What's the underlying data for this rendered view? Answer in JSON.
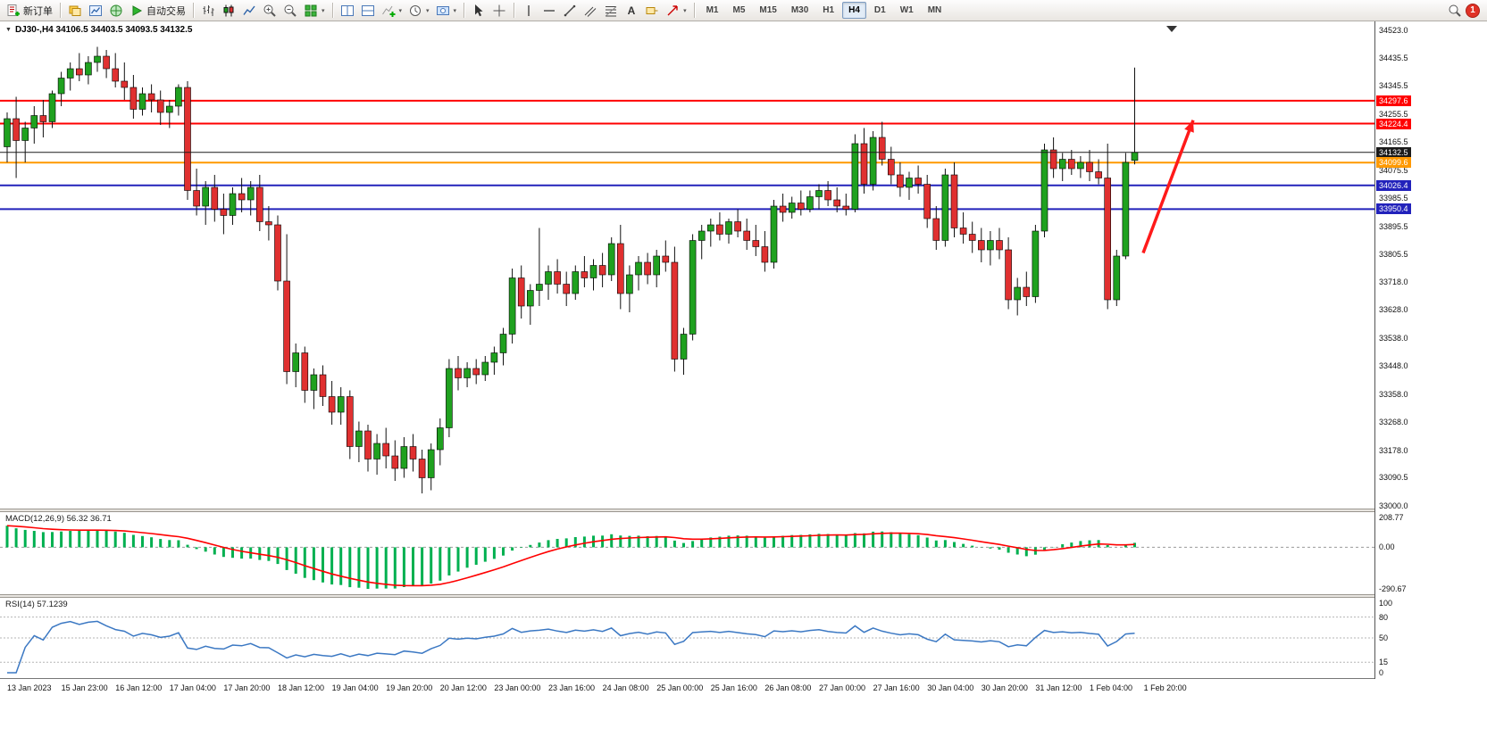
{
  "window": {
    "badge_count": "1"
  },
  "toolbar": {
    "new_order_label": "新订单",
    "auto_trading_label": "自动交易",
    "timeframes": [
      "M1",
      "M5",
      "M15",
      "M30",
      "H1",
      "H4",
      "D1",
      "W1",
      "MN"
    ],
    "active_timeframe": "H4"
  },
  "chart_header": {
    "symbol_title": "DJ30-,H4 34106.5 34403.5 34093.5 34132.5"
  },
  "chart_data": {
    "type": "candlestick",
    "symbol": "DJ30-",
    "period": "H4",
    "current": {
      "open": 34106.5,
      "high": 34403.5,
      "low": 34093.5,
      "close": 34132.5
    },
    "y_range": [
      33000,
      34523
    ],
    "y_ticks": [
      "34523.0",
      "34435.5",
      "34345.5",
      "34255.5",
      "34165.5",
      "34075.5",
      "33985.5",
      "33895.5",
      "33805.5",
      "33718.0",
      "33628.0",
      "33538.0",
      "33448.0",
      "33358.0",
      "33268.0",
      "33178.0",
      "33090.5",
      "33000.0"
    ],
    "price_lines": [
      {
        "value": 34297.6,
        "color": "#ff0000",
        "width": 2
      },
      {
        "value": 34224.4,
        "color": "#ff0000",
        "width": 2
      },
      {
        "value": 34132.5,
        "color": "#1a1a1a",
        "width": 1,
        "type": "bid"
      },
      {
        "value": 34099.6,
        "color": "#ff9900",
        "width": 2
      },
      {
        "value": 34026.4,
        "color": "#2222bb",
        "width": 2
      },
      {
        "value": 33950.4,
        "color": "#2222bb",
        "width": 2
      }
    ],
    "colors": {
      "up": "#1fa11f",
      "down": "#e03030",
      "wick": "#111111"
    },
    "candles": [
      [
        34150,
        34260,
        34100,
        34240
      ],
      [
        34240,
        34310,
        34050,
        34170
      ],
      [
        34170,
        34230,
        34100,
        34210
      ],
      [
        34210,
        34280,
        34160,
        34250
      ],
      [
        34250,
        34300,
        34180,
        34230
      ],
      [
        34230,
        34330,
        34210,
        34320
      ],
      [
        34320,
        34390,
        34280,
        34370
      ],
      [
        34370,
        34420,
        34330,
        34400
      ],
      [
        34400,
        34450,
        34360,
        34380
      ],
      [
        34380,
        34440,
        34350,
        34420
      ],
      [
        34420,
        34470,
        34390,
        34440
      ],
      [
        34440,
        34460,
        34370,
        34400
      ],
      [
        34400,
        34450,
        34340,
        34360
      ],
      [
        34360,
        34420,
        34300,
        34340
      ],
      [
        34340,
        34380,
        34240,
        34270
      ],
      [
        34270,
        34340,
        34250,
        34320
      ],
      [
        34320,
        34350,
        34260,
        34300
      ],
      [
        34300,
        34330,
        34220,
        34260
      ],
      [
        34260,
        34300,
        34210,
        34280
      ],
      [
        34280,
        34350,
        34250,
        34340
      ],
      [
        34340,
        34360,
        33980,
        34010
      ],
      [
        34010,
        34080,
        33930,
        33960
      ],
      [
        33960,
        34040,
        33900,
        34020
      ],
      [
        34020,
        34060,
        33910,
        33950
      ],
      [
        33950,
        34000,
        33870,
        33930
      ],
      [
        33930,
        34020,
        33900,
        34000
      ],
      [
        34000,
        34050,
        33940,
        33980
      ],
      [
        33980,
        34040,
        33930,
        34020
      ],
      [
        34020,
        34060,
        33880,
        33910
      ],
      [
        33910,
        33960,
        33850,
        33900
      ],
      [
        33900,
        33930,
        33690,
        33720
      ],
      [
        33720,
        33870,
        33390,
        33430
      ],
      [
        33430,
        33520,
        33380,
        33490
      ],
      [
        33490,
        33510,
        33330,
        33370
      ],
      [
        33370,
        33440,
        33310,
        33420
      ],
      [
        33420,
        33450,
        33320,
        33350
      ],
      [
        33350,
        33400,
        33260,
        33300
      ],
      [
        33300,
        33380,
        33260,
        33350
      ],
      [
        33350,
        33370,
        33150,
        33190
      ],
      [
        33190,
        33270,
        33140,
        33240
      ],
      [
        33240,
        33260,
        33110,
        33150
      ],
      [
        33150,
        33230,
        33100,
        33200
      ],
      [
        33200,
        33250,
        33120,
        33160
      ],
      [
        33160,
        33210,
        33080,
        33120
      ],
      [
        33120,
        33220,
        33090,
        33190
      ],
      [
        33190,
        33230,
        33110,
        33150
      ],
      [
        33150,
        33180,
        33040,
        33090
      ],
      [
        33090,
        33200,
        33050,
        33180
      ],
      [
        33180,
        33280,
        33130,
        33250
      ],
      [
        33250,
        33470,
        33220,
        33440
      ],
      [
        33440,
        33480,
        33370,
        33410
      ],
      [
        33410,
        33460,
        33380,
        33440
      ],
      [
        33440,
        33470,
        33390,
        33420
      ],
      [
        33420,
        33480,
        33400,
        33460
      ],
      [
        33460,
        33510,
        33420,
        33490
      ],
      [
        33490,
        33570,
        33450,
        33550
      ],
      [
        33550,
        33760,
        33520,
        33730
      ],
      [
        33730,
        33770,
        33600,
        33640
      ],
      [
        33640,
        33710,
        33580,
        33690
      ],
      [
        33690,
        33890,
        33640,
        33710
      ],
      [
        33710,
        33770,
        33660,
        33750
      ],
      [
        33750,
        33790,
        33680,
        33710
      ],
      [
        33710,
        33750,
        33640,
        33680
      ],
      [
        33680,
        33770,
        33660,
        33750
      ],
      [
        33750,
        33800,
        33700,
        33730
      ],
      [
        33730,
        33790,
        33690,
        33770
      ],
      [
        33770,
        33810,
        33700,
        33740
      ],
      [
        33740,
        33860,
        33720,
        33840
      ],
      [
        33840,
        33900,
        33630,
        33680
      ],
      [
        33680,
        33770,
        33620,
        33740
      ],
      [
        33740,
        33800,
        33690,
        33780
      ],
      [
        33780,
        33810,
        33710,
        33740
      ],
      [
        33740,
        33820,
        33700,
        33800
      ],
      [
        33800,
        33850,
        33750,
        33780
      ],
      [
        33780,
        33830,
        33430,
        33470
      ],
      [
        33470,
        33570,
        33420,
        33550
      ],
      [
        33550,
        33870,
        33530,
        33850
      ],
      [
        33850,
        33900,
        33790,
        33880
      ],
      [
        33880,
        33920,
        33830,
        33900
      ],
      [
        33900,
        33940,
        33850,
        33870
      ],
      [
        33870,
        33920,
        33840,
        33910
      ],
      [
        33910,
        33950,
        33860,
        33880
      ],
      [
        33880,
        33920,
        33820,
        33850
      ],
      [
        33850,
        33900,
        33800,
        33830
      ],
      [
        33830,
        33880,
        33750,
        33780
      ],
      [
        33780,
        33980,
        33760,
        33960
      ],
      [
        33960,
        34000,
        33910,
        33940
      ],
      [
        33940,
        33990,
        33920,
        33970
      ],
      [
        33970,
        34010,
        33930,
        33950
      ],
      [
        33950,
        34010,
        33940,
        33990
      ],
      [
        33990,
        34030,
        33950,
        34010
      ],
      [
        34010,
        34040,
        33960,
        33980
      ],
      [
        33980,
        34020,
        33940,
        33960
      ],
      [
        33960,
        34000,
        33930,
        33950
      ],
      [
        33950,
        34190,
        33940,
        34160
      ],
      [
        34160,
        34210,
        34000,
        34030
      ],
      [
        34030,
        34200,
        34010,
        34180
      ],
      [
        34180,
        34230,
        34090,
        34110
      ],
      [
        34110,
        34150,
        34030,
        34060
      ],
      [
        34060,
        34100,
        33990,
        34020
      ],
      [
        34020,
        34070,
        33980,
        34050
      ],
      [
        34050,
        34090,
        34000,
        34030
      ],
      [
        34030,
        34060,
        33890,
        33920
      ],
      [
        33920,
        33960,
        33820,
        33850
      ],
      [
        33850,
        34080,
        33830,
        34060
      ],
      [
        34060,
        34100,
        33860,
        33890
      ],
      [
        33890,
        33940,
        33840,
        33870
      ],
      [
        33870,
        33910,
        33810,
        33850
      ],
      [
        33850,
        33890,
        33780,
        33820
      ],
      [
        33820,
        33880,
        33770,
        33850
      ],
      [
        33850,
        33890,
        33790,
        33820
      ],
      [
        33820,
        33860,
        33630,
        33660
      ],
      [
        33660,
        33730,
        33610,
        33700
      ],
      [
        33700,
        33750,
        33640,
        33670
      ],
      [
        33670,
        33900,
        33650,
        33880
      ],
      [
        33880,
        34160,
        33860,
        34140
      ],
      [
        34140,
        34180,
        34050,
        34080
      ],
      [
        34080,
        34130,
        34040,
        34110
      ],
      [
        34110,
        34140,
        34060,
        34080
      ],
      [
        34080,
        34120,
        34050,
        34100
      ],
      [
        34100,
        34140,
        34040,
        34070
      ],
      [
        34070,
        34110,
        34030,
        34050
      ],
      [
        34050,
        34160,
        33630,
        33660
      ],
      [
        33660,
        33820,
        33640,
        33800
      ],
      [
        33800,
        34130,
        33790,
        34100
      ],
      [
        34106.5,
        34403.5,
        34093.5,
        34132.5
      ]
    ],
    "time_labels": [
      "13 Jan 2023",
      "15 Jan 23:00",
      "16 Jan 12:00",
      "17 Jan 04:00",
      "17 Jan 20:00",
      "18 Jan 12:00",
      "19 Jan 04:00",
      "19 Jan 20:00",
      "20 Jan 12:00",
      "23 Jan 00:00",
      "23 Jan 16:00",
      "24 Jan 08:00",
      "25 Jan 00:00",
      "25 Jan 16:00",
      "26 Jan 08:00",
      "27 Jan 00:00",
      "27 Jan 16:00",
      "30 Jan 04:00",
      "30 Jan 20:00",
      "31 Jan 12:00",
      "1 Feb 04:00",
      "1 Feb 20:00"
    ],
    "macd": {
      "label": "MACD(12,26,9) 56.32 36.71",
      "value": 56.32,
      "signal": 36.71,
      "y_ticks": [
        "208.77",
        "0.00",
        "-290.67"
      ],
      "y_range": [
        -290.67,
        208.77
      ],
      "histogram_color": "#00b050",
      "signal_color": "#ff0000"
    },
    "rsi": {
      "label": "RSI(14) 57.1239",
      "value": 57.1239,
      "y_ticks": [
        "100",
        "80",
        "50",
        "15",
        "0"
      ],
      "levels": [
        80,
        50,
        15
      ],
      "y_range": [
        0,
        100
      ],
      "line_color": "#3b78c3"
    },
    "annotation_arrow": {
      "color": "#ff1a1a",
      "from_price": 33810,
      "to_price": 34235
    }
  }
}
